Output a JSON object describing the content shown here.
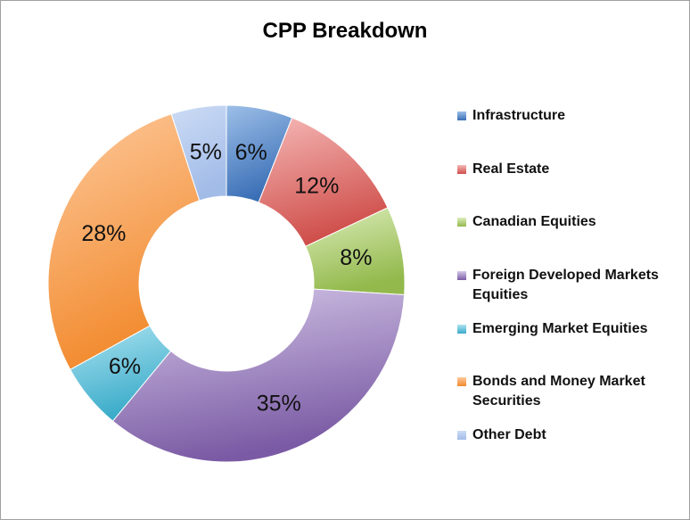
{
  "chart_data": {
    "type": "pie",
    "variant": "donut",
    "title": "CPP Breakdown",
    "legend_position": "right",
    "categories": [
      "Infrastructure",
      "Real Estate",
      "Canadian Equities",
      "Foreign Developed Markets Equities",
      "Emerging Market Equities",
      "Bonds and Money Market Securities",
      "Other Debt"
    ],
    "legend_lines": [
      [
        "Infrastructure"
      ],
      [
        "Real Estate"
      ],
      [
        "Canadian Equities"
      ],
      [
        "Foreign Developed Markets",
        "Equities"
      ],
      [
        "Emerging Market Equities"
      ],
      [
        "Bonds and Money Market",
        "Securities"
      ],
      [
        "Other Debt"
      ]
    ],
    "values": [
      6,
      12,
      8,
      35,
      6,
      28,
      5
    ],
    "data_labels": [
      "6%",
      "12%",
      "8%",
      "35%",
      "6%",
      "28%",
      "5%"
    ],
    "colors": [
      "#4f81bd",
      "#c0504d",
      "#9bbb59",
      "#8064a2",
      "#4bacc6",
      "#f79646",
      "#a3bde8"
    ]
  }
}
